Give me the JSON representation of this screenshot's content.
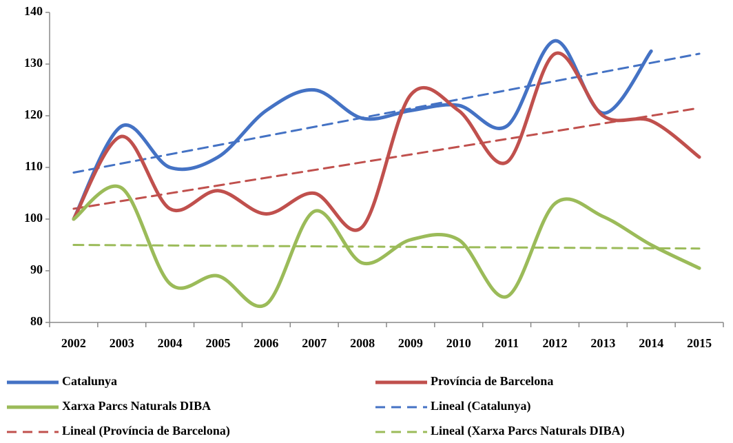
{
  "chart_data": {
    "type": "line",
    "categories": [
      "2002",
      "2003",
      "2004",
      "2005",
      "2006",
      "2007",
      "2008",
      "2009",
      "2010",
      "2011",
      "2012",
      "2013",
      "2014",
      "2015"
    ],
    "series": [
      {
        "name": "Catalunya",
        "color": "#4472c4",
        "dashed": false,
        "values": [
          100,
          118,
          110,
          112,
          121,
          125,
          119.5,
          121,
          122,
          118,
          134.5,
          120.5,
          132.5,
          null
        ]
      },
      {
        "name": "Província de Barcelona",
        "color": "#c0504d",
        "dashed": false,
        "values": [
          100,
          116,
          102,
          105.5,
          101,
          105,
          98.5,
          124,
          121,
          111,
          132,
          120,
          119,
          112
        ]
      },
      {
        "name": "Xarxa Parcs Naturals DIBA",
        "color": "#9bbb59",
        "dashed": false,
        "values": [
          100,
          106,
          87.5,
          89,
          83.5,
          101.5,
          91.5,
          96,
          96,
          85,
          103,
          100.5,
          95,
          90.5
        ]
      },
      {
        "name": "Lineal (Catalunya)",
        "color": "#4472c4",
        "dashed": true,
        "values": [
          109,
          110.8,
          112.5,
          114.3,
          116.1,
          117.8,
          119.6,
          121.4,
          123.2,
          124.9,
          126.7,
          128.5,
          130.2,
          132
        ]
      },
      {
        "name": "Lineal (Província de Barcelona)",
        "color": "#c0504d",
        "dashed": true,
        "values": [
          102,
          103.5,
          105,
          106.5,
          108,
          109.5,
          111,
          112.5,
          114,
          115.5,
          117,
          118.5,
          120,
          121.5
        ]
      },
      {
        "name": "Lineal (Xarxa Parcs Naturals DIBA)",
        "color": "#9bbb59",
        "dashed": true,
        "values": [
          95,
          94.9,
          94.9,
          94.8,
          94.8,
          94.7,
          94.7,
          94.6,
          94.6,
          94.5,
          94.5,
          94.4,
          94.4,
          94.3
        ]
      }
    ],
    "ylim": [
      80,
      140
    ],
    "yticks": [
      80,
      90,
      100,
      110,
      120,
      130,
      140
    ],
    "grid": false,
    "legend": "bottom"
  }
}
